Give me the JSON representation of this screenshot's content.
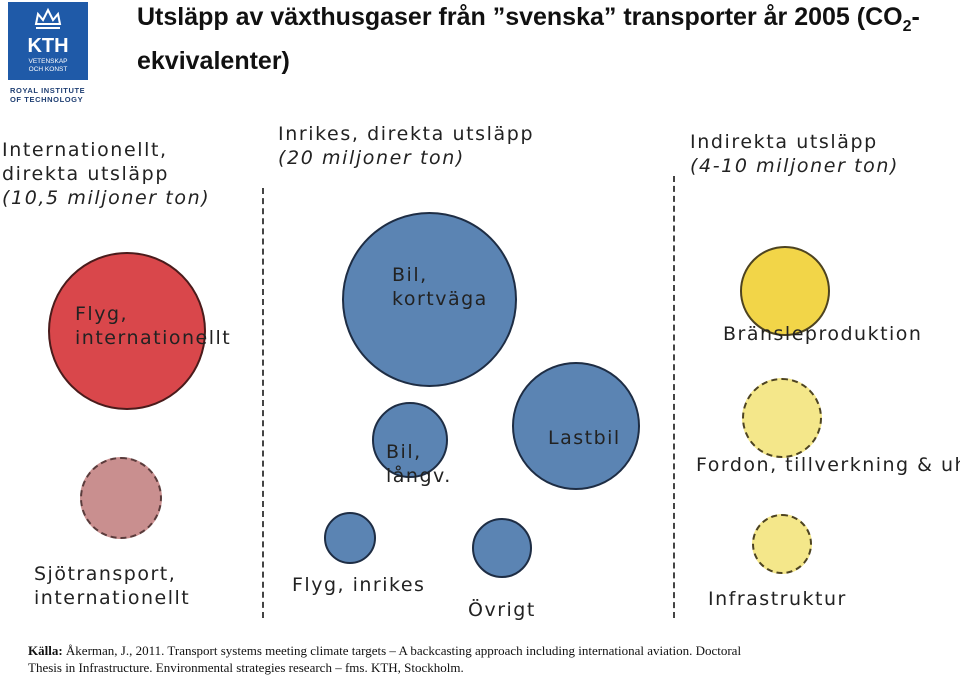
{
  "logo": {
    "line1": "KTH",
    "line2": "VETENSKAP",
    "line3": "OCH KONST",
    "institution_line1": "ROYAL INSTITUTE",
    "institution_line2": "OF TECHNOLOGY"
  },
  "title": {
    "part1": "Utsläpp av växthusgaser från ”svenska” transporter år 2005 (CO",
    "subscript": "2",
    "part2": "-ekvivalenter)"
  },
  "columns": [
    {
      "line1": "Internationellt,",
      "line2": "direkta utsläpp",
      "sub": "(10,5 miljoner ton)"
    },
    {
      "line1": "Inrikes, direkta utsläpp",
      "sub": "(20 miljoner ton)"
    },
    {
      "line1": "Indirekta utsläpp",
      "sub": "(4-10 miljoner ton)"
    }
  ],
  "bubbles": {
    "flyg_int": {
      "line1": "Flyg,",
      "line2": "internationellt"
    },
    "sjo_int": {
      "line1": "Sjötransport,",
      "line2": "internationellt"
    },
    "bil_kort": {
      "line1": "Bil,",
      "line2": "kortväga"
    },
    "bil_lang": {
      "line1": "Bil,",
      "line2": "långv."
    },
    "lastbil": {
      "label": "Lastbil"
    },
    "flyg_inr": {
      "label": "Flyg, inrikes"
    },
    "ovrigt": {
      "label": "Övrigt"
    },
    "bransle": {
      "label": "Bränsleproduktion"
    },
    "fordon": {
      "label": "Fordon, tillverkning & uh"
    },
    "infra": {
      "label": "Infrastruktur"
    }
  },
  "colors": {
    "red": "#d9474b",
    "pink": "#c98f8f",
    "blue": "#5b84b3",
    "yellow": "#f2d548",
    "pale_yellow": "#f4e78a",
    "logo_blue": "#1f5aa8"
  },
  "source": {
    "label": "Källa:",
    "line1": "Åkerman, J., 2011. Transport systems meeting climate targets – A backcasting approach including international aviation. Doctoral",
    "line2": "Thesis in Infrastructure. Environmental strategies research – fms. KTH, Stockholm."
  }
}
